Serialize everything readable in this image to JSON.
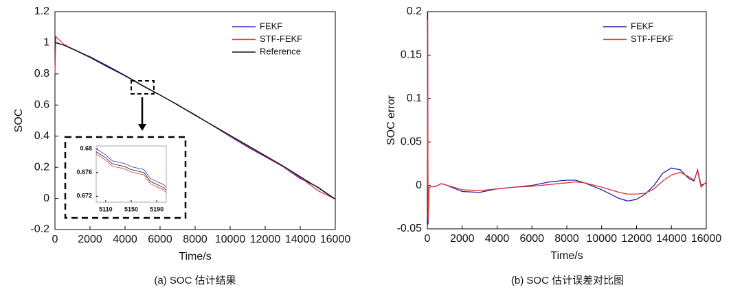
{
  "chart_data": [
    {
      "type": "line",
      "caption": "(a) SOC 估计结果",
      "xlabel": "Time/s",
      "ylabel": "SOC",
      "x": [
        0,
        50,
        500,
        1000,
        2000,
        3000,
        4000,
        5000,
        6000,
        7000,
        8000,
        9000,
        10000,
        11000,
        12000,
        13000,
        14000,
        15000,
        16000
      ],
      "series": [
        {
          "name": "FEKF",
          "color": "#2b2bd6",
          "values": [
            1.0,
            1.0,
            0.985,
            0.96,
            0.905,
            0.845,
            0.787,
            0.723,
            0.663,
            0.602,
            0.537,
            0.468,
            0.398,
            0.33,
            0.268,
            0.205,
            0.128,
            0.073,
            -0.004
          ]
        },
        {
          "name": "STF-FEKF",
          "color": "#e03030",
          "values": [
            0.8,
            1.04,
            0.99,
            0.962,
            0.908,
            0.852,
            0.789,
            0.726,
            0.664,
            0.603,
            0.533,
            0.469,
            0.402,
            0.335,
            0.272,
            0.207,
            0.135,
            0.05,
            -0.004
          ]
        },
        {
          "name": "Reference",
          "color": "#111111",
          "values": [
            1.0,
            1.0,
            0.985,
            0.96,
            0.91,
            0.85,
            0.79,
            0.725,
            0.665,
            0.6,
            0.535,
            0.47,
            0.405,
            0.34,
            0.275,
            0.21,
            0.14,
            0.07,
            -0.005
          ]
        }
      ],
      "xlim": [
        0,
        16000
      ],
      "xticks": [
        0,
        2000,
        4000,
        6000,
        8000,
        10000,
        12000,
        14000,
        16000
      ],
      "ylim": [
        -0.2,
        1.2
      ],
      "yticks": [
        -0.2,
        0,
        0.2,
        0.4,
        0.6,
        0.8,
        1,
        1.2
      ],
      "legend": "upper right"
    },
    {
      "type": "line",
      "x": [
        5095,
        5110,
        5120,
        5140,
        5150,
        5170,
        5180,
        5200,
        5205
      ],
      "series": [
        {
          "name": "FEKF",
          "color": "#2b2bd6",
          "values": [
            0.68,
            0.679,
            0.678,
            0.6775,
            0.677,
            0.6765,
            0.675,
            0.674,
            0.6735
          ]
        },
        {
          "name": "STF-FEKF",
          "color": "#e03030",
          "values": [
            0.6791,
            0.6781,
            0.6771,
            0.6766,
            0.6761,
            0.6756,
            0.6741,
            0.6731,
            0.6726
          ]
        },
        {
          "name": "Reference",
          "color": "#111111",
          "values": [
            0.6795,
            0.6785,
            0.6775,
            0.677,
            0.6765,
            0.676,
            0.6745,
            0.6735,
            0.673
          ]
        }
      ],
      "xlim": [
        5095,
        5205
      ],
      "xticks": [
        5110,
        5150,
        5190
      ],
      "ylim": [
        0.671,
        0.6805
      ],
      "yticks": [
        0.672,
        0.676,
        0.68
      ]
    },
    {
      "type": "line",
      "caption": "(b) SOC 估计误差对比图",
      "xlabel": "Time/s",
      "ylabel": "SOC error",
      "x": [
        0,
        20,
        40,
        100,
        500,
        800,
        1000,
        2000,
        3000,
        4000,
        5000,
        6000,
        7000,
        8000,
        8500,
        9000,
        10000,
        11000,
        11500,
        12000,
        12500,
        13000,
        13500,
        14000,
        14500,
        15000,
        15300,
        15500,
        15700,
        16000
      ],
      "series": [
        {
          "name": "FEKF",
          "color": "#1c1ca8",
          "values": [
            0,
            0.2,
            -0.045,
            -0.002,
            -0.001,
            0.002,
            0.001,
            -0.007,
            -0.008,
            -0.004,
            -0.002,
            0.0,
            0.004,
            0.006,
            0.006,
            0.003,
            -0.005,
            -0.015,
            -0.018,
            -0.016,
            -0.01,
            0.0,
            0.014,
            0.02,
            0.018,
            0.008,
            0.005,
            0.018,
            0.0,
            0.003
          ]
        },
        {
          "name": "STF-FEKF",
          "color": "#e03030",
          "values": [
            0,
            0.19,
            -0.04,
            -0.002,
            -0.001,
            0.002,
            0.001,
            -0.005,
            -0.006,
            -0.004,
            -0.002,
            -0.001,
            0.001,
            0.003,
            0.004,
            0.003,
            -0.002,
            -0.008,
            -0.01,
            -0.01,
            -0.009,
            -0.004,
            0.005,
            0.012,
            0.015,
            0.01,
            0.006,
            0.017,
            -0.002,
            0.004
          ]
        }
      ],
      "xlim": [
        0,
        16000
      ],
      "xticks": [
        0,
        2000,
        4000,
        6000,
        8000,
        10000,
        12000,
        14000,
        16000
      ],
      "ylim": [
        -0.05,
        0.2
      ],
      "yticks": [
        -0.05,
        0,
        0.05,
        0.1,
        0.15,
        0.2
      ],
      "legend": "upper right"
    }
  ]
}
